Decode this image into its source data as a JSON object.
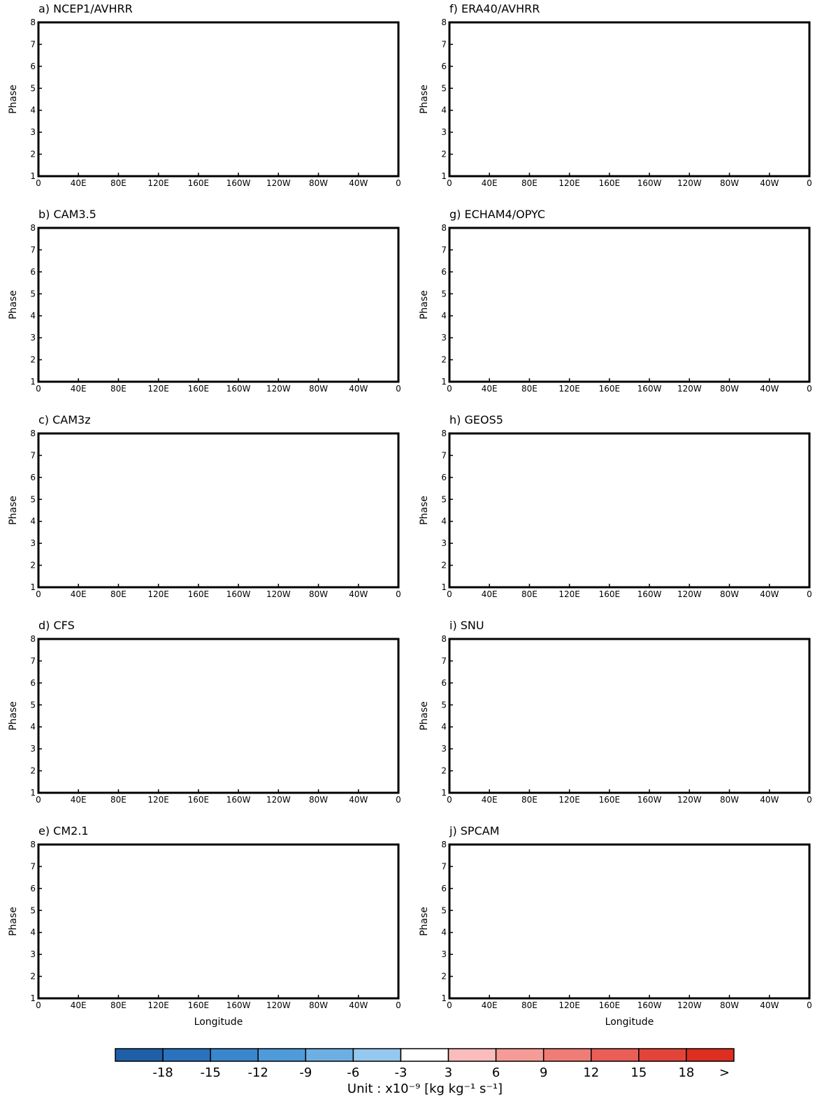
{
  "chart_data": [
    {
      "type": "contour",
      "title": "a) NCEP1/AVHRR",
      "ylabel": "Phase",
      "xlim": [
        0,
        360
      ],
      "ylim": [
        1,
        8
      ],
      "xticks": [
        0,
        {
          "value": 40,
          "label": "40E"
        },
        {
          "value": 80,
          "label": "80E"
        },
        {
          "value": 120,
          "label": "120E"
        },
        {
          "value": 160,
          "label": "160E"
        },
        {
          "value": 200,
          "label": "160W"
        },
        {
          "value": 240,
          "label": "120W"
        },
        {
          "value": 280,
          "label": "80W"
        },
        {
          "value": 320,
          "label": "40W"
        },
        {
          "value": 360,
          "label": "0"
        }
      ],
      "yticks": [
        1,
        2,
        3,
        4,
        5,
        6,
        7,
        8
      ]
    },
    {
      "type": "contour",
      "title": "b) CAM3.5",
      "ylabel": "Phase",
      "xlim": [
        0,
        360
      ],
      "ylim": [
        1,
        8
      ],
      "xticks": [
        0,
        {
          "value": 40,
          "label": "40E"
        },
        {
          "value": 80,
          "label": "80E"
        },
        {
          "value": 120,
          "label": "120E"
        },
        {
          "value": 160,
          "label": "160E"
        },
        {
          "value": 200,
          "label": "160W"
        },
        {
          "value": 240,
          "label": "120W"
        },
        {
          "value": 280,
          "label": "80W"
        },
        {
          "value": 320,
          "label": "40W"
        },
        {
          "value": 360,
          "label": "0"
        }
      ],
      "yticks": [
        1,
        2,
        3,
        4,
        5,
        6,
        7,
        8
      ]
    },
    {
      "type": "contour",
      "title": "c) CAM3z",
      "ylabel": "Phase",
      "xlim": [
        0,
        360
      ],
      "ylim": [
        1,
        8
      ],
      "xticks": [
        0,
        {
          "value": 40,
          "label": "40E"
        },
        {
          "value": 80,
          "label": "80E"
        },
        {
          "value": 120,
          "label": "120E"
        },
        {
          "value": 160,
          "label": "160E"
        },
        {
          "value": 200,
          "label": "160W"
        },
        {
          "value": 240,
          "label": "120W"
        },
        {
          "value": 280,
          "label": "80W"
        },
        {
          "value": 320,
          "label": "40W"
        },
        {
          "value": 360,
          "label": "0"
        }
      ],
      "yticks": [
        1,
        2,
        3,
        4,
        5,
        6,
        7,
        8
      ]
    },
    {
      "type": "contour",
      "title": "d) CFS",
      "ylabel": "Phase",
      "xlim": [
        0,
        360
      ],
      "ylim": [
        1,
        8
      ],
      "xticks": [
        0,
        {
          "value": 40,
          "label": "40E"
        },
        {
          "value": 80,
          "label": "80E"
        },
        {
          "value": 120,
          "label": "120E"
        },
        {
          "value": 160,
          "label": "160E"
        },
        {
          "value": 200,
          "label": "160W"
        },
        {
          "value": 240,
          "label": "120W"
        },
        {
          "value": 280,
          "label": "80W"
        },
        {
          "value": 320,
          "label": "40W"
        },
        {
          "value": 360,
          "label": "0"
        }
      ],
      "yticks": [
        1,
        2,
        3,
        4,
        5,
        6,
        7,
        8
      ]
    },
    {
      "type": "contour",
      "title": "e) CM2.1",
      "ylabel": "Phase",
      "xlabel": "Longitude",
      "xlim": [
        0,
        360
      ],
      "ylim": [
        1,
        8
      ],
      "xticks": [
        0,
        {
          "value": 40,
          "label": "40E"
        },
        {
          "value": 80,
          "label": "80E"
        },
        {
          "value": 120,
          "label": "120E"
        },
        {
          "value": 160,
          "label": "160E"
        },
        {
          "value": 200,
          "label": "160W"
        },
        {
          "value": 240,
          "label": "120W"
        },
        {
          "value": 280,
          "label": "80W"
        },
        {
          "value": 320,
          "label": "40W"
        },
        {
          "value": 360,
          "label": "0"
        }
      ],
      "yticks": [
        1,
        2,
        3,
        4,
        5,
        6,
        7,
        8
      ]
    },
    {
      "type": "contour",
      "title": "f) ERA40/AVHRR",
      "ylabel": "Phase",
      "xlim": [
        0,
        360
      ],
      "ylim": [
        1,
        8
      ],
      "xticks": [
        0,
        {
          "value": 40,
          "label": "40E"
        },
        {
          "value": 80,
          "label": "80E"
        },
        {
          "value": 120,
          "label": "120E"
        },
        {
          "value": 160,
          "label": "160E"
        },
        {
          "value": 200,
          "label": "160W"
        },
        {
          "value": 240,
          "label": "120W"
        },
        {
          "value": 280,
          "label": "80W"
        },
        {
          "value": 320,
          "label": "40W"
        },
        {
          "value": 360,
          "label": "0"
        }
      ],
      "yticks": [
        1,
        2,
        3,
        4,
        5,
        6,
        7,
        8
      ]
    },
    {
      "type": "contour",
      "title": "g) ECHAM4/OPYC",
      "ylabel": "Phase",
      "xlim": [
        0,
        360
      ],
      "ylim": [
        1,
        8
      ],
      "xticks": [
        0,
        {
          "value": 40,
          "label": "40E"
        },
        {
          "value": 80,
          "label": "80E"
        },
        {
          "value": 120,
          "label": "120E"
        },
        {
          "value": 160,
          "label": "160E"
        },
        {
          "value": 200,
          "label": "160W"
        },
        {
          "value": 240,
          "label": "120W"
        },
        {
          "value": 280,
          "label": "80W"
        },
        {
          "value": 320,
          "label": "40W"
        },
        {
          "value": 360,
          "label": "0"
        }
      ],
      "yticks": [
        1,
        2,
        3,
        4,
        5,
        6,
        7,
        8
      ]
    },
    {
      "type": "contour",
      "title": "h) GEOS5",
      "ylabel": "Phase",
      "xlim": [
        0,
        360
      ],
      "ylim": [
        1,
        8
      ],
      "xticks": [
        0,
        {
          "value": 40,
          "label": "40E"
        },
        {
          "value": 80,
          "label": "80E"
        },
        {
          "value": 120,
          "label": "120E"
        },
        {
          "value": 160,
          "label": "160E"
        },
        {
          "value": 200,
          "label": "160W"
        },
        {
          "value": 240,
          "label": "120W"
        },
        {
          "value": 280,
          "label": "80W"
        },
        {
          "value": 320,
          "label": "40W"
        },
        {
          "value": 360,
          "label": "0"
        }
      ],
      "yticks": [
        1,
        2,
        3,
        4,
        5,
        6,
        7,
        8
      ]
    },
    {
      "type": "contour",
      "title": "i) SNU",
      "ylabel": "Phase",
      "xlim": [
        0,
        360
      ],
      "ylim": [
        1,
        8
      ],
      "xticks": [
        0,
        {
          "value": 40,
          "label": "40E"
        },
        {
          "value": 80,
          "label": "80E"
        },
        {
          "value": 120,
          "label": "120E"
        },
        {
          "value": 160,
          "label": "160E"
        },
        {
          "value": 200,
          "label": "160W"
        },
        {
          "value": 240,
          "label": "120W"
        },
        {
          "value": 280,
          "label": "80W"
        },
        {
          "value": 320,
          "label": "40W"
        },
        {
          "value": 360,
          "label": "0"
        }
      ],
      "yticks": [
        1,
        2,
        3,
        4,
        5,
        6,
        7,
        8
      ]
    },
    {
      "type": "contour",
      "title": "j) SPCAM",
      "ylabel": "Phase",
      "xlabel": "Longitude",
      "xlim": [
        0,
        360
      ],
      "ylim": [
        1,
        8
      ],
      "xticks": [
        0,
        {
          "value": 40,
          "label": "40E"
        },
        {
          "value": 80,
          "label": "80E"
        },
        {
          "value": 120,
          "label": "120E"
        },
        {
          "value": 160,
          "label": "160E"
        },
        {
          "value": 200,
          "label": "160W"
        },
        {
          "value": 240,
          "label": "120W"
        },
        {
          "value": 280,
          "label": "80W"
        },
        {
          "value": 320,
          "label": "40W"
        },
        {
          "value": 360,
          "label": "0"
        }
      ],
      "yticks": [
        1,
        2,
        3,
        4,
        5,
        6,
        7,
        8
      ]
    }
  ],
  "colorbar": {
    "levels": [
      -18,
      -15,
      -12,
      -9,
      -6,
      -3,
      3,
      6,
      9,
      12,
      15,
      18
    ],
    "over_label": ">",
    "colors": [
      "#1f5fa8",
      "#2a72bd",
      "#3a86cc",
      "#4f9ad8",
      "#6dafe3",
      "#94c8ee",
      "#ffffff",
      "#fbbcbc",
      "#f59c98",
      "#ef7c76",
      "#e95e56",
      "#e2443a",
      "#dd2e22"
    ],
    "unit": "Unit : x10⁻⁹ [kg kg⁻¹ s⁻¹]"
  }
}
